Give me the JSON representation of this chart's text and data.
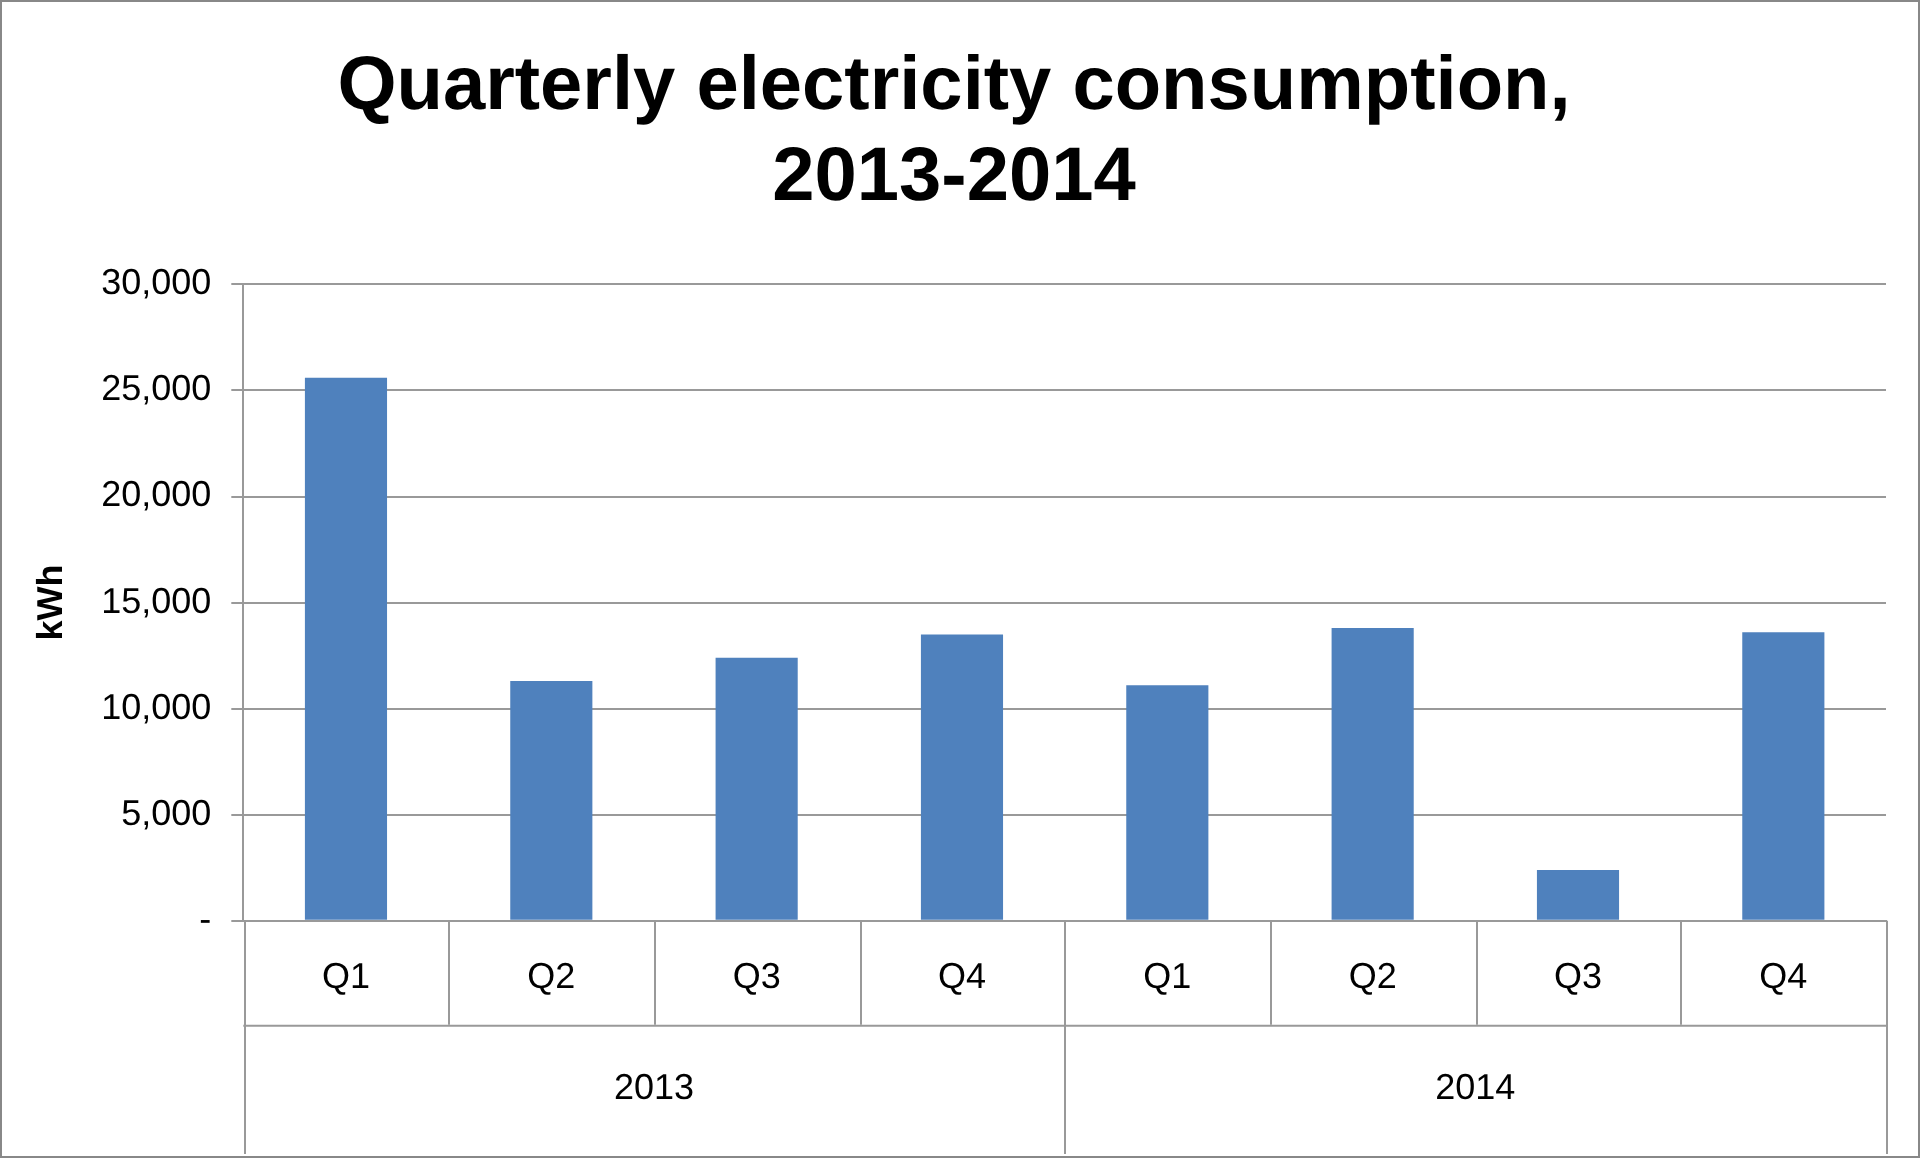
{
  "chart_data": {
    "type": "bar",
    "title": "Quarterly electricity consumption, 2013-2014",
    "ylabel": "kWh",
    "categories": [
      "Q1",
      "Q2",
      "Q3",
      "Q4",
      "Q1",
      "Q2",
      "Q3",
      "Q4"
    ],
    "values": [
      25600,
      11300,
      12400,
      13500,
      11100,
      13800,
      2400,
      13600
    ],
    "color": "#4f81bd",
    "ylim": [
      0,
      30000
    ],
    "yticks": [
      {
        "value": 0,
        "label": "-"
      },
      {
        "value": 5000,
        "label": "5,000"
      },
      {
        "value": 10000,
        "label": "10,000"
      },
      {
        "value": 15000,
        "label": "15,000"
      },
      {
        "value": 20000,
        "label": "20,000"
      },
      {
        "value": 25000,
        "label": "25,000"
      },
      {
        "value": 30000,
        "label": "30,000"
      }
    ],
    "grid": "y",
    "legend": false,
    "annotations": [
      "2013",
      "2014"
    ]
  }
}
